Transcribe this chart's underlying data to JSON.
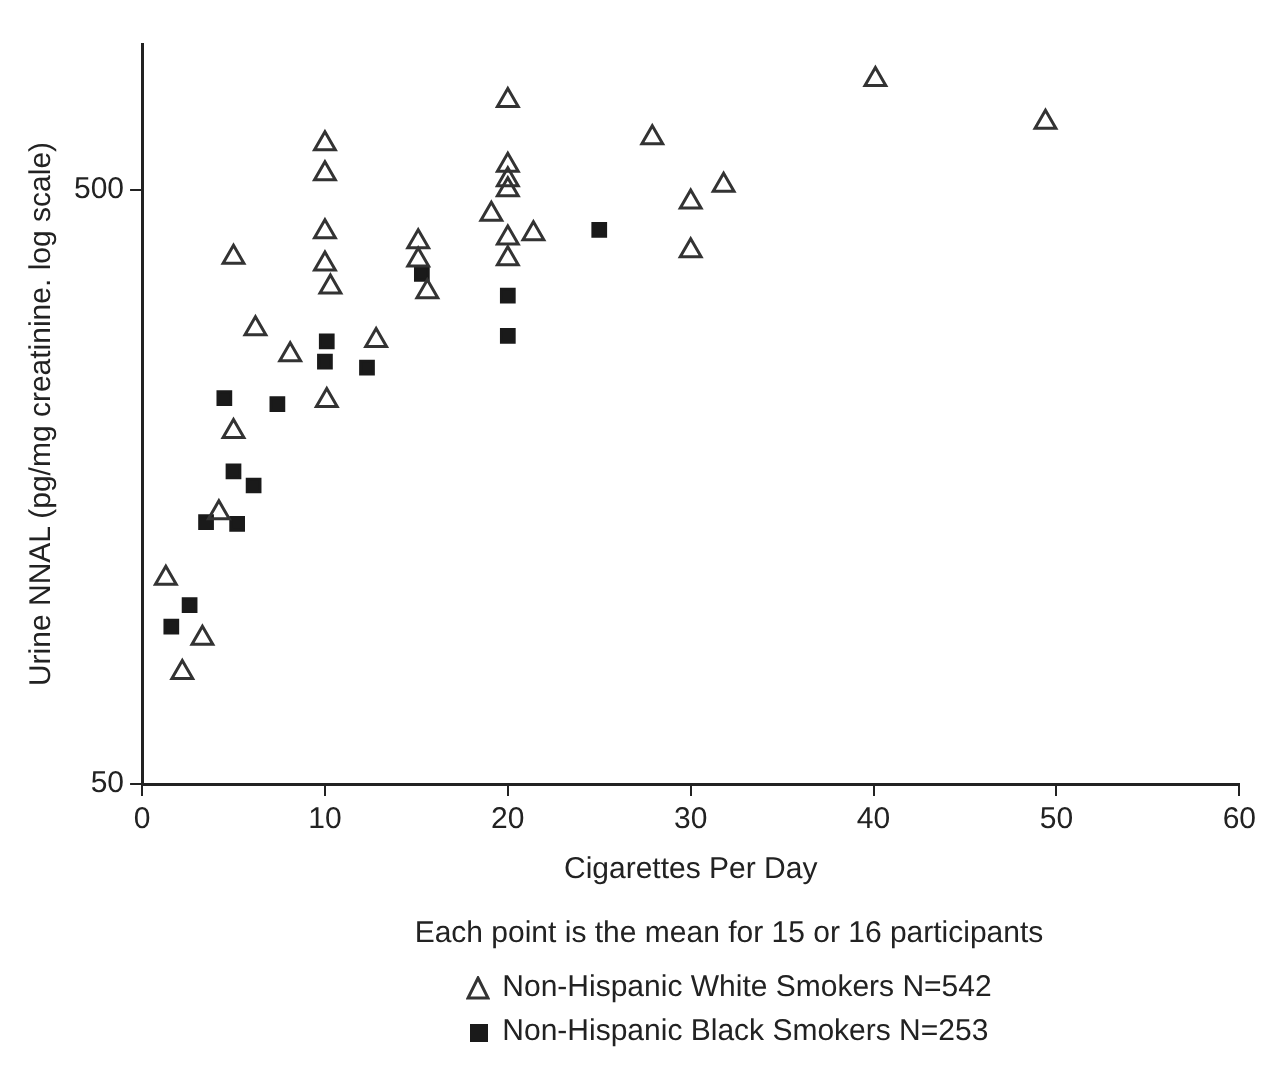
{
  "chart_data": {
    "type": "scatter",
    "xlabel": "Cigarettes Per Day",
    "ylabel": "Urine NNAL (pg/mg creatinine. log scale)",
    "log": "y",
    "xlim": [
      0,
      60
    ],
    "xticks": [
      0,
      10,
      20,
      30,
      40,
      50,
      60
    ],
    "ylim": [
      50,
      880
    ],
    "yticks": [
      50,
      500
    ],
    "grid": false,
    "legend": "bottom",
    "annotations": [
      "Each point is the mean for 15 or 16 participants"
    ],
    "series": [
      {
        "name": "Non-Hispanic White Smokers N=542",
        "color": "#333333",
        "marker": "triangle",
        "x": [
          1.3,
          3.3,
          2.2,
          4.2,
          5.0,
          5.0,
          6.2,
          8.1,
          10.1,
          10,
          10,
          10,
          10,
          10.3,
          12.8,
          15.1,
          15.1,
          15.6,
          20,
          20,
          20,
          20,
          19.1,
          20,
          21.4,
          20,
          27.9,
          30,
          30,
          31.8,
          40.1,
          49.4
        ],
        "values": [
          111,
          88,
          77,
          143,
          196,
          385,
          292,
          264,
          221,
          598,
          532,
          425,
          375,
          343,
          279,
          409,
          381,
          337,
          707,
          550,
          520,
          500,
          455,
          415,
          422,
          383,
          612,
          477,
          395,
          509,
          767,
          650
        ]
      },
      {
        "name": "Non-Hispanic Black Smokers N=253",
        "color": "#1a1a1a",
        "marker": "square",
        "x": [
          1.6,
          2.6,
          3.5,
          5.2,
          5.0,
          6.1,
          4.5,
          7.4,
          10.1,
          10,
          12.3,
          15.3,
          20,
          20,
          25
        ],
        "values": [
          92,
          100,
          138,
          137,
          168,
          159,
          223,
          218,
          278,
          257,
          251,
          361,
          332,
          284,
          428
        ]
      }
    ]
  }
}
